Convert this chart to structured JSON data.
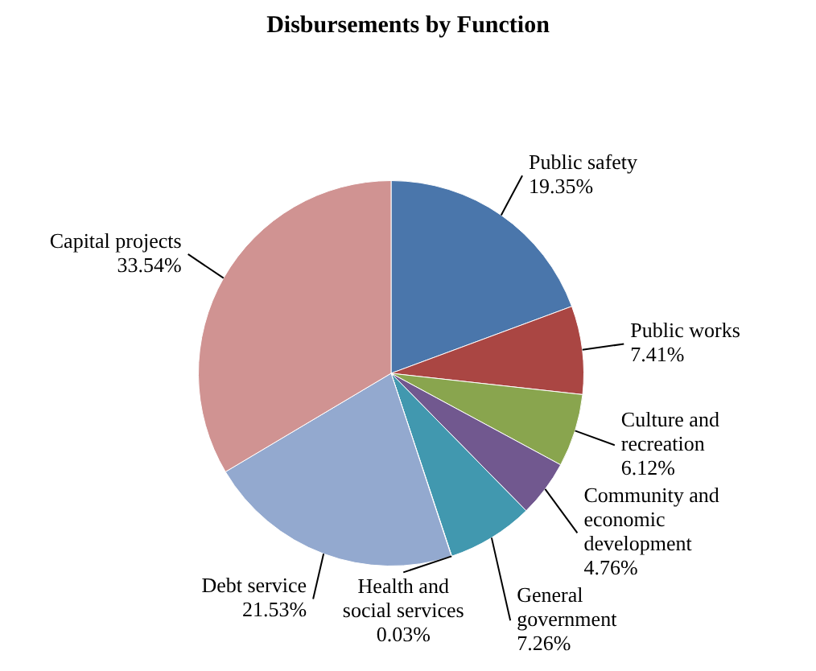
{
  "chart_data": {
    "type": "pie",
    "title": "Disbursements by Function",
    "categories": [
      "Public safety",
      "Public works",
      "Culture and recreation",
      "Community and economic development",
      "General government",
      "Health and social services",
      "Debt service",
      "Capital projects"
    ],
    "values": [
      19.35,
      7.41,
      6.12,
      4.76,
      7.26,
      0.03,
      21.53,
      33.54
    ],
    "colors": [
      "#4a76ab",
      "#aa4643",
      "#89a54e",
      "#71588f",
      "#4198af",
      "#db843d",
      "#93a9cf",
      "#d09392"
    ],
    "value_labels": [
      "19.35%",
      "7.41%",
      "6.12%",
      "4.76%",
      "7.26%",
      "0.03%",
      "21.53%",
      "33.54%"
    ]
  }
}
